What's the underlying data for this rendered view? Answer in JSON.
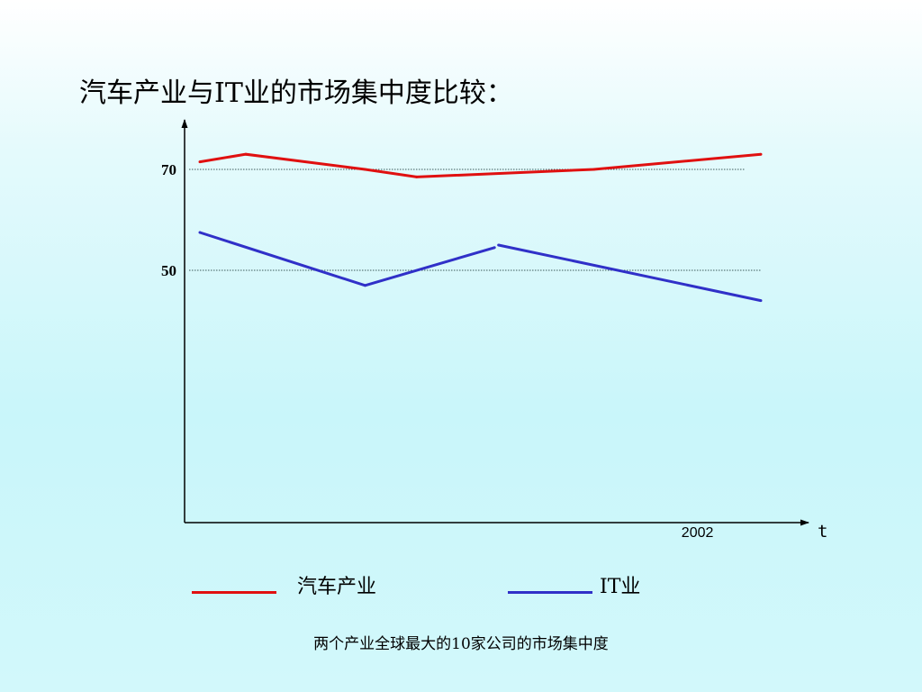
{
  "title": "汽车产业与IT业的市场集中度比较：",
  "caption": "两个产业全球最大的10家公司的市场集中度",
  "chart_data": {
    "type": "line",
    "x": [
      0.0,
      0.0818,
      0.2945,
      0.3863,
      0.5252,
      0.5324,
      0.7022,
      1.0
    ],
    "xlim": [
      0.0,
      1.0
    ],
    "x_tick_labels": [
      {
        "x": 0.887,
        "label": "2002"
      }
    ],
    "xlabel": "t",
    "ylabel": "",
    "ylim": [
      0,
      88
    ],
    "y_ticks": [
      50,
      70
    ],
    "gridlines_y": [
      50,
      70
    ],
    "legend_position": "bottom",
    "series": [
      {
        "name": "汽车产业",
        "color": "#e01010",
        "points": [
          [
            0.0,
            71.5
          ],
          [
            0.0818,
            73
          ],
          [
            0.2945,
            70
          ],
          [
            0.3863,
            68.5
          ],
          [
            0.7022,
            70
          ],
          [
            1.0,
            73
          ]
        ]
      },
      {
        "name": "IT业",
        "color": "#3030c8",
        "segments": [
          [
            [
              0.0,
              57.5
            ],
            [
              0.2945,
              47
            ],
            [
              0.5252,
              54.5
            ]
          ],
          [
            [
              0.5324,
              55
            ],
            [
              1.0,
              44
            ]
          ]
        ]
      }
    ]
  }
}
